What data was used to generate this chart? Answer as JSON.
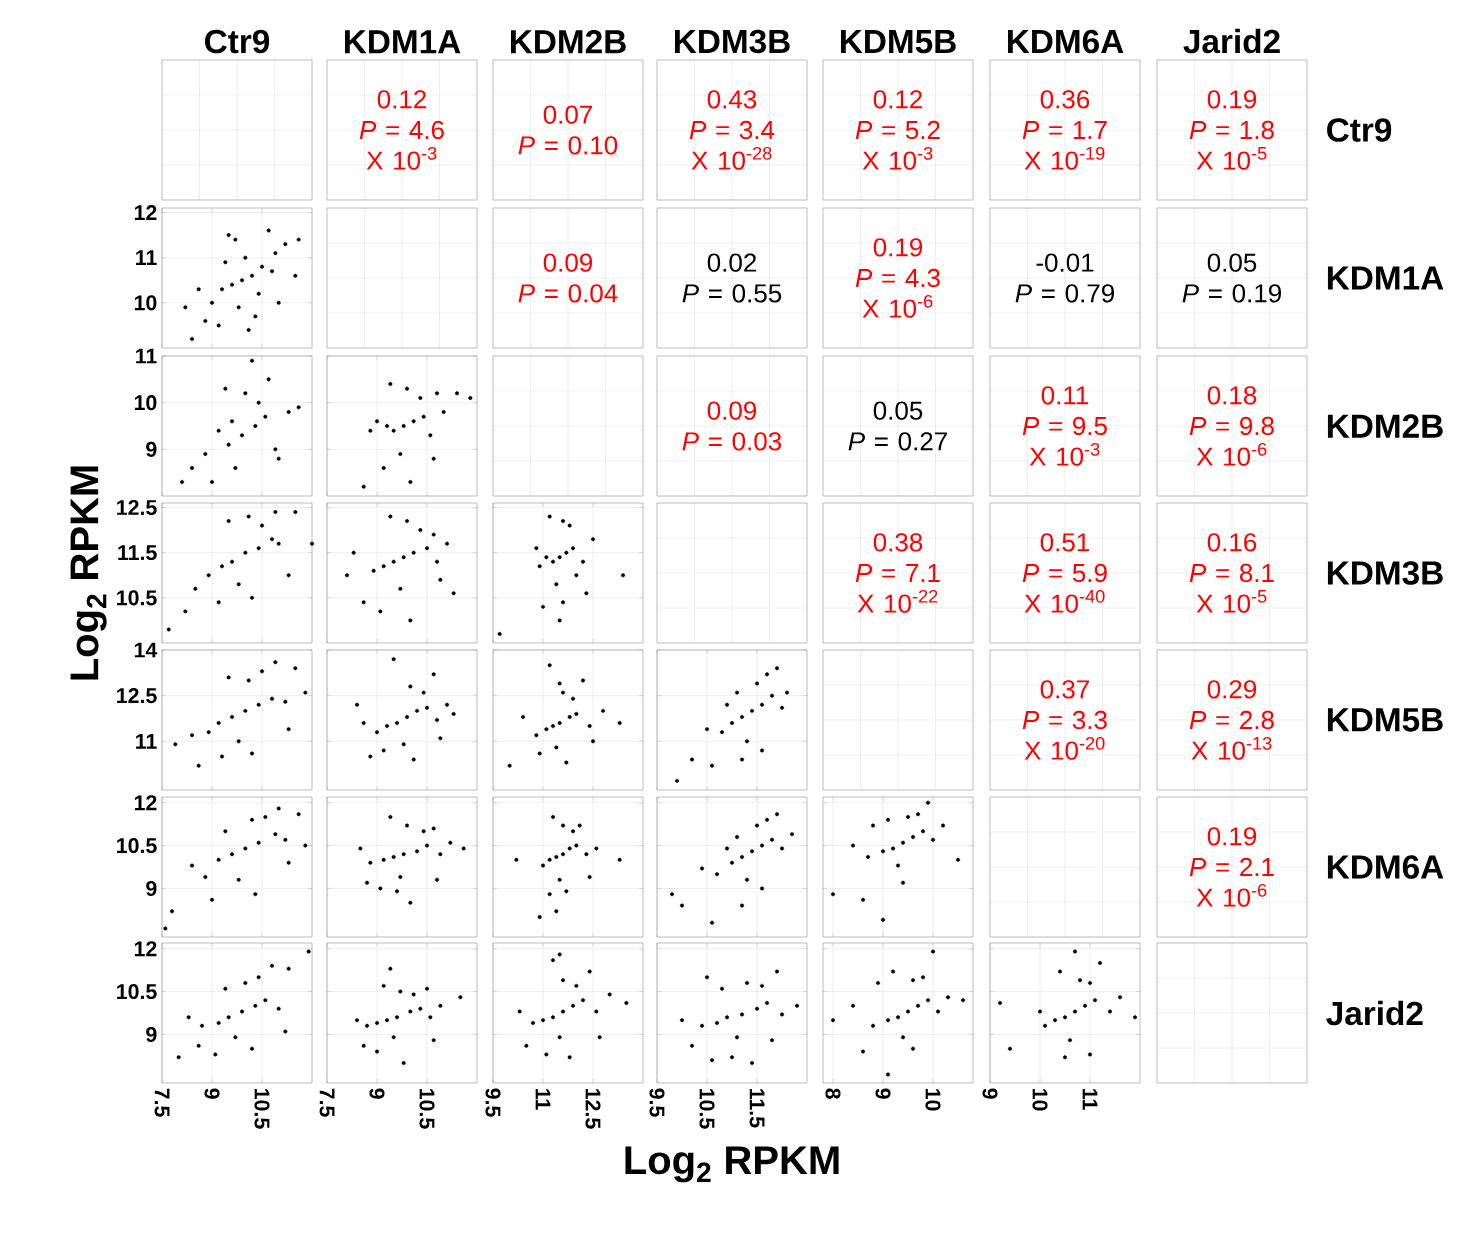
{
  "chart_data": [
    {
      "type": "other",
      "annotations": [
        "Ctr9",
        "KDM1A",
        "KDM2B",
        "KDM3B",
        "KDM5B",
        "KDM6A",
        "Jarid2"
      ]
    },
    {
      "type": "other",
      "annotations": [
        "Ctr9",
        "KDM1A",
        "KDM2B",
        "KDM3B",
        "KDM5B",
        "KDM6A",
        "Jarid2"
      ]
    },
    {
      "type": "other",
      "annotations": [
        "0.12",
        "*P* = 4.6 X 10$^{-3}$",
        "0.07",
        "*P* = 0.10",
        "0.43",
        "*P* = 3.4 X 10$^{-28}$",
        "0.12",
        "*P* = 5.2 X 10$^{-3}$",
        "0.36",
        "*P* = 1.7 X 10$^{-19}$",
        "0.19",
        "*P* = 1.8 X 10$^{-5}$"
      ],
      "colors": [
        "#ff0000",
        "#ff0000",
        "#ff0000",
        "#ff0000",
        "#ff0000",
        "#ff0000",
        "#ff0000",
        "#ff0000",
        "#ff0000",
        "#ff0000",
        "#ff0000",
        "#ff0000"
      ]
    },
    {
      "type": "other",
      "annotations": [
        "0.09",
        "*P* = 0.04",
        "0.02",
        "*P* = 0.55",
        "0.19",
        "*P* = 4.3 X 10$^{-6}$",
        "-0.01",
        "*P* = 0.79",
        "0.05",
        "*P* = 0.19"
      ],
      "colors": [
        "#ff0000",
        "#ff0000",
        "#000000",
        "#000000",
        "#ff0000",
        "#ff0000",
        "#000000",
        "#000000",
        "#000000",
        "#000000"
      ]
    },
    {
      "type": "other",
      "annotations": [
        "0.09",
        "*P* = 0.03",
        "0.05",
        "*P* = 0.27",
        "0.11",
        "*P* = 9.5 X 10$^{-3}$",
        "0.18",
        "*P* = 9.8 X 10$^{-6}$"
      ],
      "colors": [
        "#ff0000",
        "#ff0000",
        "#000000",
        "#000000",
        "#ff0000",
        "#ff0000",
        "#ff0000",
        "#ff0000"
      ]
    },
    {
      "type": "other",
      "annotations": [
        "0.38",
        "*P* = 7.1 X 10$^{-22}$",
        "0.51",
        "*P* = 5.9 X 10$^{-40}$",
        "0.16",
        "*P* = 8.1 X 10$^{-5}$"
      ],
      "colors": [
        "#ff0000",
        "#ff0000",
        "#ff0000",
        "#ff0000",
        "#ff0000",
        "#ff0000"
      ]
    },
    {
      "type": "other",
      "annotations": [
        "0.37",
        "*P* = 3.3 X 10$^{-20}$",
        "0.29",
        "*P* = 2.8 X 10$^{-13}$"
      ],
      "colors": [
        "#ff0000",
        "#ff0000",
        "#ff0000",
        "#ff0000"
      ]
    },
    {
      "type": "other",
      "annotations": [
        "0.19",
        "*P* = 2.1 X 10$^{-6}$"
      ],
      "colors": [
        "#ff0000",
        "#ff0000"
      ]
    },
    {
      "type": "scatter",
      "x": [
        9.9,
        10.2,
        9.6,
        10.5,
        9.3,
        10.0,
        10.8,
        9.0,
        9.8,
        10.4,
        11.2,
        8.6,
        9.5,
        10.7,
        11.6,
        8.2,
        9.2,
        10.1,
        11.0,
        8.8,
        9.7,
        10.9,
        11.5,
        8.4,
        10.3,
        9.4
      ],
      "values": [
        10.5,
        10.6,
        10.4,
        10.8,
        10.3,
        11.0,
        10.7,
        10.0,
        9.9,
        10.2,
        11.3,
        10.3,
        11.5,
        11.6,
        11.4,
        9.9,
        9.5,
        9.4,
        10.0,
        9.6,
        11.4,
        11.1,
        10.6,
        9.2,
        9.7,
        10.9
      ],
      "color": "#000000",
      "grid": true,
      "xlim": [
        7.5,
        12
      ],
      "ylim": [
        9,
        12.1
      ],
      "xticks": [
        7.5,
        9,
        10.5
      ],
      "yticks": [
        10,
        11,
        12
      ],
      "tick_labels": "y"
    },
    {
      "type": "scatter",
      "x": [
        9.9,
        10.3,
        9.5,
        10.6,
        9.2,
        10.0,
        10.9,
        8.8,
        9.7,
        10.4,
        11.3,
        8.4,
        9.4,
        10.7,
        11.6,
        8.1,
        9.0,
        10.2,
        11.0,
        9.6
      ],
      "values": [
        9.3,
        9.5,
        9.1,
        9.7,
        9.4,
        10.2,
        9.0,
        8.9,
        8.6,
        10.0,
        9.8,
        8.6,
        10.3,
        10.5,
        9.9,
        8.3,
        8.3,
        10.9,
        8.8,
        9.6
      ],
      "color": "#000000",
      "grid": true,
      "xlim": [
        7.5,
        12
      ],
      "ylim": [
        8,
        11
      ],
      "xticks": [
        7.5,
        9,
        10.5
      ],
      "yticks": [
        9,
        10,
        11
      ],
      "tick_labels": "y"
    },
    {
      "type": "scatter",
      "x": [
        9.8,
        10.1,
        9.5,
        10.4,
        9.3,
        9.9,
        10.6,
        9.0,
        9.7,
        10.3,
        11.0,
        8.8,
        9.4,
        10.8,
        11.8,
        11.4,
        9.2,
        10.0,
        10.7,
        8.6
      ],
      "values": [
        9.5,
        9.6,
        9.4,
        9.7,
        9.5,
        10.3,
        9.3,
        9.6,
        8.9,
        10.1,
        9.8,
        9.4,
        10.4,
        10.2,
        10.1,
        10.2,
        8.6,
        8.3,
        8.8,
        8.2
      ],
      "color": "#000000",
      "grid": true,
      "xlim": [
        7.5,
        12
      ],
      "ylim": [
        8,
        11
      ],
      "xticks": [
        7.5,
        9,
        10.5
      ],
      "yticks": [
        9,
        10,
        11
      ],
      "tick_labels": false
    },
    {
      "type": "scatter",
      "x": [
        10.0,
        10.4,
        9.6,
        10.8,
        9.3,
        10.1,
        11.0,
        8.9,
        9.8,
        10.5,
        11.5,
        8.5,
        9.5,
        10.9,
        12.0,
        7.7,
        8.2,
        9.2,
        11.3,
        10.2
      ],
      "values": [
        11.5,
        11.6,
        11.3,
        11.8,
        11.2,
        12.3,
        11.7,
        11.0,
        10.8,
        12.1,
        12.4,
        10.7,
        12.2,
        12.4,
        11.7,
        9.8,
        10.2,
        10.4,
        11.0,
        10.5
      ],
      "color": "#000000",
      "grid": true,
      "xlim": [
        7.5,
        12
      ],
      "ylim": [
        9.5,
        12.6
      ],
      "xticks": [
        7.5,
        9,
        10.5
      ],
      "yticks": [
        10.5,
        11.5,
        12.5
      ],
      "tick_labels": "y",
      "ylabel": "Log$_{2}$ RPKM"
    },
    {
      "type": "scatter",
      "x": [
        9.8,
        10.1,
        9.5,
        10.5,
        9.2,
        9.9,
        10.8,
        8.9,
        9.7,
        10.3,
        11.1,
        8.3,
        9.4,
        10.7,
        11.3,
        8.6,
        9.1,
        10.0,
        10.9,
        8.1
      ],
      "values": [
        11.4,
        11.5,
        11.3,
        11.6,
        11.2,
        12.2,
        11.3,
        11.1,
        10.7,
        12.0,
        11.7,
        11.5,
        12.3,
        11.9,
        10.6,
        10.4,
        10.2,
        10.0,
        10.9,
        11.0
      ],
      "color": "#000000",
      "grid": true,
      "xlim": [
        7.5,
        12
      ],
      "ylim": [
        9.5,
        12.6
      ],
      "xticks": [
        7.5,
        9,
        10.5
      ],
      "yticks": [
        10.5,
        11.5,
        12.5
      ],
      "tick_labels": false
    },
    {
      "type": "scatter",
      "x": [
        11.5,
        11.7,
        11.3,
        11.9,
        11.1,
        11.6,
        12.2,
        10.9,
        11.4,
        11.8,
        12.5,
        10.8,
        11.2,
        12.0,
        13.4,
        9.7,
        11.0,
        11.6,
        12.3,
        11.5
      ],
      "values": [
        11.4,
        11.5,
        11.3,
        11.6,
        11.4,
        12.2,
        11.3,
        11.2,
        10.8,
        12.1,
        11.8,
        11.6,
        12.3,
        11.0,
        11.0,
        9.7,
        10.3,
        10.4,
        10.6,
        10.0
      ],
      "color": "#000000",
      "grid": true,
      "xlim": [
        9.5,
        14
      ],
      "ylim": [
        9.5,
        12.6
      ],
      "xticks": [
        9.5,
        11,
        12.5
      ],
      "yticks": [
        10.5,
        11.5,
        12.5
      ],
      "tick_labels": false
    },
    {
      "type": "scatter",
      "x": [
        10.0,
        10.4,
        9.6,
        10.8,
        9.2,
        10.1,
        11.2,
        8.9,
        9.8,
        10.5,
        11.5,
        8.4,
        9.5,
        10.9,
        11.8,
        7.9,
        8.6,
        9.3,
        11.3,
        10.2
      ],
      "values": [
        12.0,
        12.2,
        11.8,
        12.4,
        11.6,
        13.0,
        12.3,
        11.3,
        11.0,
        13.3,
        13.4,
        11.2,
        13.1,
        13.6,
        12.6,
        10.9,
        10.2,
        10.5,
        11.4,
        10.6
      ],
      "color": "#000000",
      "grid": true,
      "xlim": [
        7.5,
        12
      ],
      "ylim": [
        9.4,
        14
      ],
      "xticks": [
        7.5,
        9,
        10.5
      ],
      "yticks": [
        11,
        12.5,
        14
      ],
      "tick_labels": "y"
    },
    {
      "type": "scatter",
      "x": [
        9.9,
        10.2,
        9.6,
        10.5,
        9.3,
        10.0,
        10.8,
        9.0,
        9.8,
        10.4,
        11.1,
        8.6,
        9.5,
        10.7,
        11.3,
        8.8,
        9.2,
        10.1,
        10.9,
        8.4
      ],
      "values": [
        11.8,
        12.0,
        11.6,
        12.1,
        11.5,
        12.8,
        11.7,
        11.3,
        10.9,
        12.6,
        12.2,
        11.6,
        13.7,
        13.2,
        11.9,
        10.5,
        10.7,
        10.4,
        11.1,
        12.2
      ],
      "color": "#000000",
      "grid": true,
      "xlim": [
        7.5,
        12
      ],
      "ylim": [
        9.4,
        14
      ],
      "xticks": [
        7.5,
        9,
        10.5
      ],
      "yticks": [
        11,
        12.5,
        14
      ],
      "tick_labels": false
    },
    {
      "type": "scatter",
      "x": [
        11.5,
        11.8,
        11.3,
        12.0,
        11.1,
        11.6,
        12.4,
        10.8,
        11.4,
        11.9,
        12.8,
        10.4,
        11.2,
        12.2,
        13.3,
        10.0,
        10.9,
        11.7,
        12.5,
        11.5
      ],
      "values": [
        11.6,
        11.8,
        11.5,
        11.9,
        11.4,
        12.6,
        11.5,
        11.2,
        10.8,
        12.4,
        12.0,
        11.8,
        13.5,
        13.0,
        11.6,
        10.2,
        10.6,
        10.3,
        11.0,
        12.9
      ],
      "color": "#000000",
      "grid": true,
      "xlim": [
        9.5,
        14
      ],
      "ylim": [
        9.4,
        14
      ],
      "xticks": [
        9.5,
        11,
        12.5
      ],
      "yticks": [
        11,
        12.5,
        14
      ],
      "tick_labels": false
    },
    {
      "type": "scatter",
      "x": [
        11.4,
        11.6,
        11.2,
        11.8,
        11.0,
        11.5,
        12.0,
        10.8,
        11.3,
        11.7,
        12.1,
        10.5,
        11.1,
        11.9,
        10.2,
        9.9,
        10.6,
        11.2,
        11.6,
        10.9
      ],
      "values": [
        12.0,
        12.2,
        11.8,
        12.5,
        11.6,
        12.9,
        12.1,
        11.3,
        11.0,
        13.2,
        12.6,
        11.4,
        12.6,
        13.4,
        10.4,
        9.7,
        10.2,
        10.4,
        10.7,
        12.2
      ],
      "color": "#000000",
      "grid": true,
      "xlim": [
        9.5,
        12.5
      ],
      "ylim": [
        9.4,
        14
      ],
      "xticks": [
        9.5,
        10.5,
        11.5
      ],
      "yticks": [
        11,
        12.5,
        14
      ],
      "tick_labels": false
    },
    {
      "type": "scatter",
      "x": [
        10.0,
        10.4,
        9.6,
        10.9,
        9.2,
        10.2,
        11.2,
        8.8,
        9.8,
        10.6,
        11.6,
        8.4,
        9.4,
        11.0,
        11.8,
        7.8,
        7.6,
        9.0,
        11.3,
        10.3
      ],
      "values": [
        10.4,
        10.6,
        10.2,
        10.9,
        10.0,
        11.4,
        10.7,
        9.4,
        9.3,
        11.5,
        11.6,
        9.8,
        11.0,
        11.8,
        10.5,
        8.2,
        7.6,
        8.6,
        9.9,
        8.8
      ],
      "color": "#000000",
      "grid": true,
      "xlim": [
        7.5,
        12
      ],
      "ylim": [
        7.3,
        12.2
      ],
      "xticks": [
        7.5,
        9,
        10.5
      ],
      "yticks": [
        9,
        10.5,
        12
      ],
      "tick_labels": "y"
    },
    {
      "type": "scatter",
      "x": [
        9.8,
        10.2,
        9.5,
        10.5,
        9.2,
        9.9,
        10.9,
        8.8,
        9.7,
        10.4,
        11.2,
        8.5,
        9.4,
        10.7,
        11.6,
        8.7,
        9.1,
        10.0,
        10.8,
        9.6
      ],
      "values": [
        10.2,
        10.3,
        10.1,
        10.5,
        10.0,
        11.2,
        10.2,
        9.9,
        9.4,
        11.0,
        10.6,
        10.4,
        11.5,
        11.1,
        10.4,
        9.2,
        9.0,
        8.5,
        9.3,
        8.9
      ],
      "color": "#000000",
      "grid": true,
      "xlim": [
        7.5,
        12
      ],
      "ylim": [
        7.3,
        12.2
      ],
      "xticks": [
        7.5,
        9,
        10.5
      ],
      "yticks": [
        9,
        10.5,
        12
      ],
      "tick_labels": false
    },
    {
      "type": "scatter",
      "x": [
        11.6,
        11.8,
        11.4,
        12.0,
        11.2,
        11.6,
        12.3,
        11.0,
        11.5,
        11.9,
        12.6,
        10.2,
        11.3,
        12.1,
        13.3,
        10.9,
        11.2,
        11.7,
        12.4,
        11.4
      ],
      "values": [
        10.2,
        10.4,
        10.1,
        10.5,
        10.0,
        11.2,
        10.2,
        9.8,
        9.3,
        11.0,
        10.4,
        10.0,
        11.5,
        11.2,
        10.0,
        8.0,
        8.8,
        8.9,
        9.4,
        8.2
      ],
      "color": "#000000",
      "grid": true,
      "xlim": [
        9.5,
        14
      ],
      "ylim": [
        7.3,
        12.2
      ],
      "xticks": [
        9.5,
        11,
        12.5
      ],
      "yticks": [
        9,
        10.5,
        12
      ],
      "tick_labels": false
    },
    {
      "type": "scatter",
      "x": [
        11.4,
        11.6,
        11.2,
        11.8,
        11.0,
        11.5,
        12.0,
        10.7,
        11.3,
        11.7,
        12.2,
        10.4,
        11.1,
        11.9,
        10.0,
        9.8,
        10.6,
        11.2,
        11.6,
        10.9
      ],
      "values": [
        10.3,
        10.5,
        10.1,
        10.7,
        9.9,
        11.2,
        10.4,
        9.5,
        9.3,
        11.4,
        10.9,
        9.7,
        10.8,
        11.6,
        8.4,
        8.8,
        7.8,
        8.4,
        9.0,
        10.4
      ],
      "color": "#000000",
      "grid": true,
      "xlim": [
        9.5,
        12.5
      ],
      "ylim": [
        7.3,
        12.2
      ],
      "xticks": [
        9.5,
        10.5,
        11.5
      ],
      "yticks": [
        9,
        10.5,
        12
      ],
      "tick_labels": false
    },
    {
      "type": "scatter",
      "x": [
        9.4,
        9.6,
        9.2,
        9.8,
        9.0,
        9.5,
        10.0,
        8.7,
        9.3,
        9.7,
        10.2,
        8.4,
        9.1,
        9.9,
        10.5,
        8.0,
        8.6,
        9.0,
        9.4,
        8.8
      ],
      "values": [
        10.6,
        10.8,
        10.4,
        11.0,
        10.3,
        11.5,
        10.7,
        10.1,
        9.8,
        11.6,
        11.2,
        10.5,
        11.4,
        12.0,
        10.0,
        8.8,
        8.6,
        7.9,
        9.2,
        11.2
      ],
      "color": "#000000",
      "grid": true,
      "xlim": [
        7.8,
        10.8
      ],
      "ylim": [
        7.3,
        12.2
      ],
      "xticks": [
        8,
        9,
        10
      ],
      "yticks": [
        9,
        10.5,
        12
      ],
      "tick_labels": false
    },
    {
      "type": "scatter",
      "x": [
        9.9,
        10.3,
        9.5,
        10.6,
        9.2,
        10.0,
        11.0,
        8.7,
        9.7,
        10.4,
        11.3,
        8.3,
        9.4,
        10.8,
        11.9,
        8.0,
        8.6,
        9.1,
        11.2,
        10.2
      ],
      "values": [
        9.8,
        10.0,
        9.6,
        10.2,
        9.4,
        10.8,
        9.9,
        9.3,
        8.9,
        11.0,
        11.3,
        9.6,
        10.6,
        11.4,
        11.9,
        8.2,
        8.6,
        8.3,
        9.1,
        8.5
      ],
      "color": "#000000",
      "grid": true,
      "xlim": [
        7.5,
        12
      ],
      "ylim": [
        7.3,
        12.2
      ],
      "xticks": [
        7.5,
        9,
        10.5
      ],
      "yticks": [
        9,
        10.5,
        12
      ]
    },
    {
      "type": "scatter",
      "x": [
        9.6,
        10.0,
        9.3,
        10.3,
        9.0,
        9.7,
        10.6,
        8.7,
        9.5,
        10.1,
        10.9,
        8.4,
        9.2,
        10.5,
        11.5,
        8.6,
        9.0,
        9.8,
        10.7,
        9.4
      ],
      "values": [
        9.6,
        9.8,
        9.5,
        9.9,
        9.4,
        10.5,
        9.6,
        9.3,
        8.9,
        10.4,
        10.0,
        9.5,
        10.7,
        10.6,
        10.3,
        8.6,
        8.4,
        8.0,
        8.8,
        11.3
      ],
      "color": "#000000",
      "grid": true,
      "xlim": [
        7.5,
        12
      ],
      "ylim": [
        7.3,
        12.2
      ],
      "xticks": [
        7.5,
        9,
        10.5
      ],
      "yticks": [
        9,
        10.5,
        12
      ],
      "tick_labels": "x"
    },
    {
      "type": "scatter",
      "x": [
        11.6,
        11.9,
        11.3,
        12.2,
        11.0,
        11.6,
        12.6,
        10.7,
        11.5,
        12.0,
        13.0,
        10.3,
        11.3,
        12.4,
        13.5,
        10.5,
        11.1,
        11.8,
        12.7,
        11.5
      ],
      "values": [
        9.8,
        10.0,
        9.6,
        10.2,
        9.5,
        10.9,
        9.8,
        9.4,
        8.9,
        10.7,
        10.4,
        9.8,
        11.6,
        11.2,
        10.1,
        8.6,
        8.3,
        8.2,
        8.9,
        11.8
      ],
      "color": "#000000",
      "grid": true,
      "xlim": [
        9.5,
        14
      ],
      "ylim": [
        7.3,
        12.2
      ],
      "xticks": [
        9.5,
        11,
        12.5
      ],
      "yticks": [
        9,
        10.5,
        12
      ],
      "tick_labels": "x"
    },
    {
      "type": "scatter",
      "x": [
        11.2,
        11.5,
        10.9,
        11.7,
        10.7,
        11.3,
        12.0,
        10.4,
        11.1,
        11.6,
        12.3,
        10.0,
        10.8,
        11.9,
        10.2,
        10.6,
        11.0,
        11.4,
        11.8,
        10.5
      ],
      "values": [
        9.7,
        9.9,
        9.6,
        10.1,
        9.4,
        10.8,
        9.7,
        9.3,
        8.9,
        10.7,
        10.0,
        9.5,
        10.6,
        11.2,
        8.6,
        8.1,
        8.2,
        8.0,
        8.8,
        11.0
      ],
      "color": "#000000",
      "grid": true,
      "xlim": [
        9.5,
        12.5
      ],
      "ylim": [
        7.3,
        12.2
      ],
      "xticks": [
        9.5,
        10.5,
        11.5
      ],
      "yticks": [
        9,
        10.5,
        12
      ],
      "tick_labels": "x",
      "xlabel": "Log$_{2}$ RPKM"
    },
    {
      "type": "scatter",
      "x": [
        9.5,
        9.7,
        9.3,
        9.9,
        9.1,
        9.6,
        10.1,
        8.8,
        9.4,
        9.8,
        10.3,
        8.4,
        9.2,
        10.0,
        10.6,
        8.0,
        8.6,
        9.1,
        9.6,
        8.9
      ],
      "values": [
        9.8,
        10.0,
        9.6,
        10.2,
        9.5,
        10.9,
        9.8,
        9.3,
        8.9,
        11.0,
        10.3,
        10.0,
        11.2,
        11.9,
        10.2,
        9.5,
        8.4,
        7.6,
        8.5,
        10.8
      ],
      "color": "#000000",
      "grid": true,
      "xlim": [
        7.8,
        10.8
      ],
      "ylim": [
        7.3,
        12.2
      ],
      "xticks": [
        8,
        9,
        10
      ],
      "yticks": [
        9,
        10.5,
        12
      ],
      "tick_labels": "x"
    },
    {
      "type": "scatter",
      "x": [
        10.7,
        10.9,
        10.5,
        11.1,
        10.3,
        10.8,
        11.4,
        10.1,
        10.6,
        11.0,
        11.6,
        10.0,
        10.4,
        11.2,
        11.9,
        9.2,
        9.4,
        10.5,
        11.0,
        10.7
      ],
      "values": [
        9.8,
        10.0,
        9.6,
        10.2,
        9.5,
        10.9,
        9.8,
        9.3,
        8.8,
        10.8,
        10.3,
        9.8,
        11.2,
        11.5,
        9.6,
        10.1,
        8.5,
        8.2,
        8.3,
        11.9
      ],
      "color": "#000000",
      "grid": true,
      "xlim": [
        9,
        12
      ],
      "ylim": [
        7.3,
        12.2
      ],
      "xticks": [
        9,
        10,
        11
      ],
      "yticks": [
        9,
        10.5,
        12
      ],
      "tick_labels": "x"
    }
  ]
}
